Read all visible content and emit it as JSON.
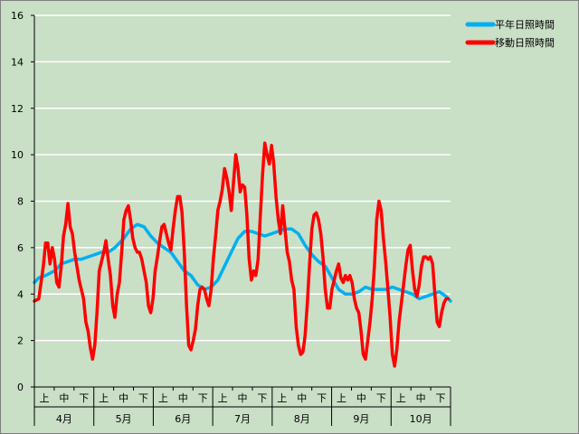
{
  "chart_data": {
    "type": "line",
    "title": "",
    "xlabel": "",
    "ylabel": "",
    "ylim": [
      0,
      16
    ],
    "yticks": [
      0,
      2,
      4,
      6,
      8,
      10,
      12,
      14,
      16
    ],
    "grid": "horizontal",
    "legend": "top-right",
    "months": [
      "4月",
      "5月",
      "6月",
      "7月",
      "8月",
      "9月",
      "10月"
    ],
    "dekads": [
      "上",
      "中",
      "下"
    ],
    "series": [
      {
        "name": "平年日照時間",
        "color": "#00b0f0",
        "values": [
          [
            0,
            4.5
          ],
          [
            2,
            4.7
          ],
          [
            5,
            4.8
          ],
          [
            9,
            5.0
          ],
          [
            12,
            5.3
          ],
          [
            15,
            5.4
          ],
          [
            18,
            5.5
          ],
          [
            21,
            5.5
          ],
          [
            24,
            5.6
          ],
          [
            27,
            5.7
          ],
          [
            30,
            5.8
          ],
          [
            33,
            5.8
          ],
          [
            36,
            6.0
          ],
          [
            40,
            6.4
          ],
          [
            43,
            6.8
          ],
          [
            46,
            7.0
          ],
          [
            49,
            6.9
          ],
          [
            52,
            6.5
          ],
          [
            55,
            6.2
          ],
          [
            58,
            6.0
          ],
          [
            61,
            5.8
          ],
          [
            64,
            5.4
          ],
          [
            67,
            5.0
          ],
          [
            70,
            4.8
          ],
          [
            73,
            4.4
          ],
          [
            76,
            4.2
          ],
          [
            79,
            4.3
          ],
          [
            82,
            4.6
          ],
          [
            85,
            5.2
          ],
          [
            88,
            5.8
          ],
          [
            91,
            6.4
          ],
          [
            94,
            6.7
          ],
          [
            97,
            6.7
          ],
          [
            100,
            6.6
          ],
          [
            103,
            6.5
          ],
          [
            106,
            6.6
          ],
          [
            109,
            6.7
          ],
          [
            112,
            6.8
          ],
          [
            115,
            6.8
          ],
          [
            118,
            6.6
          ],
          [
            121,
            6.1
          ],
          [
            124,
            5.7
          ],
          [
            127,
            5.4
          ],
          [
            130,
            5.2
          ],
          [
            133,
            4.7
          ],
          [
            136,
            4.2
          ],
          [
            139,
            4.0
          ],
          [
            142,
            4.0
          ],
          [
            145,
            4.1
          ],
          [
            148,
            4.3
          ],
          [
            151,
            4.2
          ],
          [
            154,
            4.2
          ],
          [
            157,
            4.2
          ],
          [
            160,
            4.3
          ],
          [
            163,
            4.2
          ],
          [
            166,
            4.1
          ],
          [
            169,
            4.0
          ],
          [
            172,
            3.8
          ],
          [
            175,
            3.9
          ],
          [
            178,
            4.0
          ],
          [
            181,
            4.1
          ],
          [
            184,
            3.9
          ],
          [
            186,
            3.7
          ]
        ]
      },
      {
        "name": "移動日照時間",
        "color": "#ff0000",
        "values": [
          [
            0,
            3.7
          ],
          [
            2,
            3.8
          ],
          [
            4,
            5.2
          ],
          [
            5,
            6.2
          ],
          [
            6,
            6.2
          ],
          [
            7,
            5.3
          ],
          [
            8,
            6.0
          ],
          [
            9,
            5.5
          ],
          [
            10,
            4.5
          ],
          [
            11,
            4.3
          ],
          [
            12,
            5.2
          ],
          [
            13,
            6.5
          ],
          [
            14,
            7.0
          ],
          [
            15,
            7.9
          ],
          [
            16,
            6.9
          ],
          [
            17,
            6.6
          ],
          [
            18,
            5.8
          ],
          [
            19,
            5.2
          ],
          [
            20,
            4.6
          ],
          [
            21,
            4.2
          ],
          [
            22,
            3.8
          ],
          [
            23,
            2.8
          ],
          [
            24,
            2.4
          ],
          [
            25,
            1.7
          ],
          [
            26,
            1.2
          ],
          [
            27,
            1.8
          ],
          [
            28,
            3.2
          ],
          [
            29,
            5.0
          ],
          [
            30,
            5.4
          ],
          [
            31,
            5.8
          ],
          [
            32,
            6.3
          ],
          [
            33,
            5.5
          ],
          [
            34,
            4.8
          ],
          [
            35,
            3.5
          ],
          [
            36,
            3.0
          ],
          [
            37,
            4.0
          ],
          [
            38,
            4.5
          ],
          [
            39,
            5.8
          ],
          [
            40,
            7.2
          ],
          [
            41,
            7.6
          ],
          [
            42,
            7.8
          ],
          [
            43,
            7.2
          ],
          [
            44,
            6.4
          ],
          [
            45,
            6.0
          ],
          [
            46,
            5.8
          ],
          [
            47,
            5.8
          ],
          [
            48,
            5.5
          ],
          [
            49,
            5.0
          ],
          [
            50,
            4.5
          ],
          [
            51,
            3.5
          ],
          [
            52,
            3.2
          ],
          [
            53,
            3.8
          ],
          [
            54,
            5.0
          ],
          [
            55,
            5.6
          ],
          [
            56,
            6.3
          ],
          [
            57,
            6.9
          ],
          [
            58,
            7.0
          ],
          [
            59,
            6.6
          ],
          [
            60,
            6.2
          ],
          [
            61,
            5.9
          ],
          [
            62,
            6.8
          ],
          [
            63,
            7.6
          ],
          [
            64,
            8.2
          ],
          [
            65,
            8.2
          ],
          [
            66,
            7.5
          ],
          [
            67,
            5.8
          ],
          [
            68,
            3.5
          ],
          [
            69,
            1.8
          ],
          [
            70,
            1.6
          ],
          [
            71,
            2.0
          ],
          [
            72,
            2.5
          ],
          [
            73,
            3.5
          ],
          [
            74,
            4.2
          ],
          [
            75,
            4.3
          ],
          [
            76,
            4.2
          ],
          [
            77,
            3.8
          ],
          [
            78,
            3.5
          ],
          [
            79,
            4.2
          ],
          [
            80,
            5.5
          ],
          [
            81,
            6.5
          ],
          [
            82,
            7.6
          ],
          [
            83,
            8.0
          ],
          [
            84,
            8.5
          ],
          [
            85,
            9.4
          ],
          [
            86,
            9.0
          ],
          [
            87,
            8.4
          ],
          [
            88,
            7.6
          ],
          [
            89,
            8.8
          ],
          [
            90,
            10.0
          ],
          [
            91,
            9.4
          ],
          [
            92,
            8.4
          ],
          [
            93,
            8.7
          ],
          [
            94,
            8.6
          ],
          [
            95,
            7.4
          ],
          [
            96,
            5.5
          ],
          [
            97,
            4.6
          ],
          [
            98,
            5.0
          ],
          [
            99,
            4.8
          ],
          [
            100,
            5.5
          ],
          [
            101,
            7.4
          ],
          [
            102,
            9.2
          ],
          [
            103,
            10.5
          ],
          [
            104,
            10.0
          ],
          [
            105,
            9.6
          ],
          [
            106,
            10.4
          ],
          [
            107,
            9.6
          ],
          [
            108,
            8.2
          ],
          [
            109,
            7.2
          ],
          [
            110,
            6.6
          ],
          [
            111,
            7.8
          ],
          [
            112,
            6.8
          ],
          [
            113,
            5.8
          ],
          [
            114,
            5.4
          ],
          [
            115,
            4.6
          ],
          [
            116,
            4.2
          ],
          [
            117,
            2.6
          ],
          [
            118,
            1.8
          ],
          [
            119,
            1.4
          ],
          [
            120,
            1.5
          ],
          [
            121,
            2.2
          ],
          [
            122,
            3.6
          ],
          [
            123,
            5.3
          ],
          [
            124,
            6.8
          ],
          [
            125,
            7.4
          ],
          [
            126,
            7.5
          ],
          [
            127,
            7.2
          ],
          [
            128,
            6.6
          ],
          [
            129,
            5.6
          ],
          [
            130,
            4.2
          ],
          [
            131,
            3.4
          ],
          [
            132,
            3.4
          ],
          [
            133,
            4.2
          ],
          [
            134,
            4.6
          ],
          [
            135,
            5.0
          ],
          [
            136,
            5.3
          ],
          [
            137,
            4.7
          ],
          [
            138,
            4.5
          ],
          [
            139,
            4.8
          ],
          [
            140,
            4.6
          ],
          [
            141,
            4.8
          ],
          [
            142,
            4.5
          ],
          [
            143,
            3.8
          ],
          [
            144,
            3.4
          ],
          [
            145,
            3.2
          ],
          [
            146,
            2.4
          ],
          [
            147,
            1.4
          ],
          [
            148,
            1.2
          ],
          [
            149,
            2.0
          ],
          [
            150,
            2.8
          ],
          [
            151,
            3.8
          ],
          [
            152,
            5.2
          ],
          [
            153,
            7.2
          ],
          [
            154,
            8.0
          ],
          [
            155,
            7.6
          ],
          [
            156,
            6.4
          ],
          [
            157,
            5.4
          ],
          [
            158,
            4.2
          ],
          [
            159,
            3.0
          ],
          [
            160,
            1.4
          ],
          [
            161,
            0.9
          ],
          [
            162,
            1.6
          ],
          [
            163,
            2.8
          ],
          [
            164,
            3.6
          ],
          [
            165,
            4.4
          ],
          [
            166,
            5.2
          ],
          [
            167,
            5.9
          ],
          [
            168,
            6.1
          ],
          [
            169,
            5.0
          ],
          [
            170,
            4.2
          ],
          [
            171,
            3.9
          ],
          [
            172,
            4.4
          ],
          [
            173,
            5.2
          ],
          [
            174,
            5.6
          ],
          [
            175,
            5.6
          ],
          [
            176,
            5.5
          ],
          [
            177,
            5.6
          ],
          [
            178,
            5.3
          ],
          [
            179,
            4.0
          ],
          [
            180,
            2.8
          ],
          [
            181,
            2.6
          ],
          [
            182,
            3.2
          ],
          [
            183,
            3.6
          ],
          [
            184,
            3.8
          ],
          [
            185,
            3.8
          ]
        ]
      }
    ]
  }
}
